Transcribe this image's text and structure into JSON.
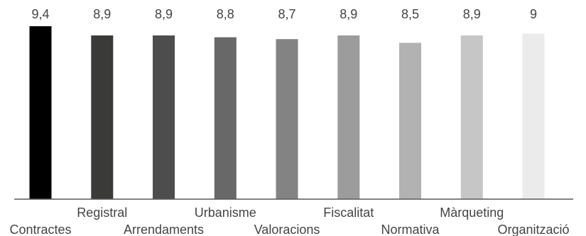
{
  "chart_data": {
    "type": "bar",
    "categories": [
      "Contractes",
      "Registral",
      "Arrendaments",
      "Urbanisme",
      "Valoracions",
      "Fiscalitat",
      "Normativa",
      "Màrqueting",
      "Organització"
    ],
    "value_labels": [
      "9,4",
      "8,9",
      "8,9",
      "8,8",
      "8,7",
      "8,9",
      "8,5",
      "8,9",
      "9"
    ],
    "values": [
      9.4,
      8.9,
      8.9,
      8.8,
      8.7,
      8.9,
      8.5,
      8.9,
      9.0
    ],
    "colors": [
      "#000000",
      "#3a3a38",
      "#4d4d4d",
      "#686868",
      "#838383",
      "#9c9c9c",
      "#b2b2b2",
      "#c6c6c6",
      "#ebebeb"
    ],
    "axis_color": "#595959",
    "ylim": [
      0,
      9.4
    ],
    "grid": false,
    "legend": "none"
  }
}
